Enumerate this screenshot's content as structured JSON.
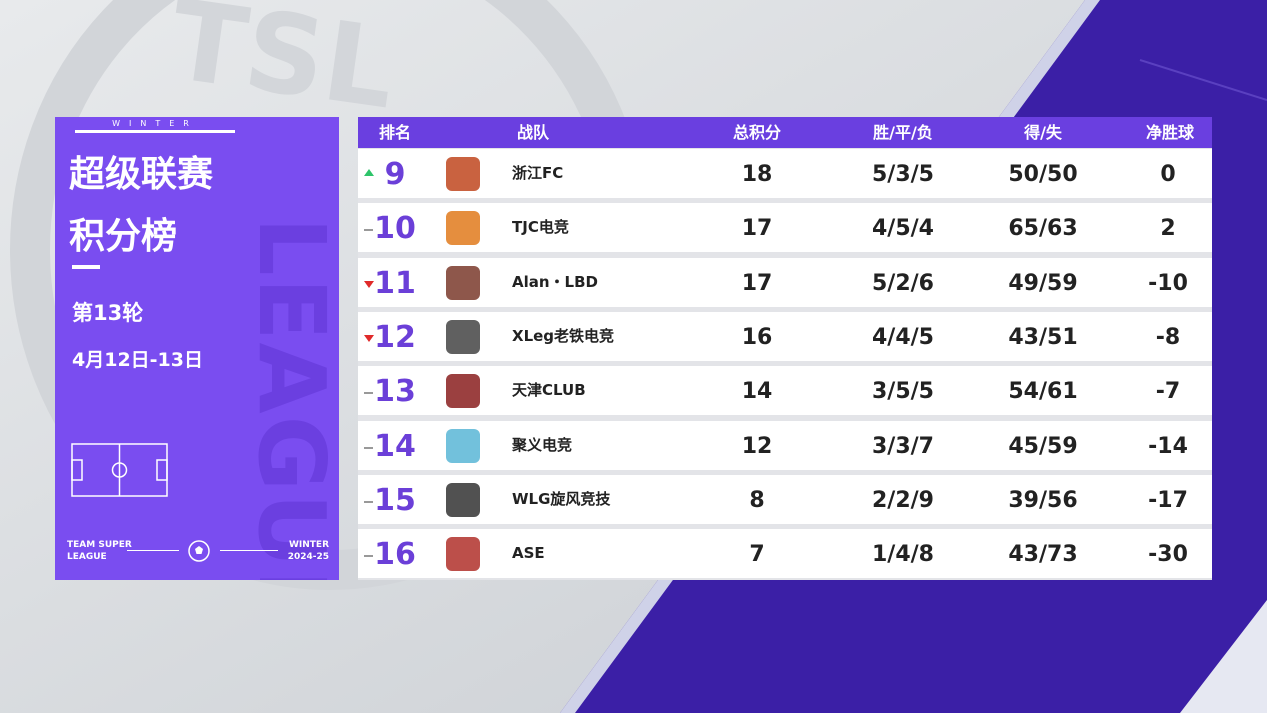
{
  "background_logo": "TSL",
  "panel": {
    "season_tag": "WINTER",
    "title_line1": "超级联赛",
    "title_line2": "积分榜",
    "round": "第13轮",
    "dates": "4月12日-13日",
    "watermark": "LEAGUE",
    "footer_left": [
      "TEAM SUPER",
      "LEAGUE"
    ],
    "footer_right": [
      "WINTER",
      "2024-25"
    ]
  },
  "table": {
    "headers": [
      "排名",
      "战队",
      "总积分",
      "胜/平/负",
      "得/失",
      "净胜球"
    ],
    "rows": [
      {
        "trend": "up",
        "rank": 9,
        "team": "浙江FC",
        "points": 18,
        "record": "5/3/5",
        "goals": "50/50",
        "diff": 0
      },
      {
        "trend": "same",
        "rank": 10,
        "team": "TJC电竞",
        "points": 17,
        "record": "4/5/4",
        "goals": "65/63",
        "diff": 2
      },
      {
        "trend": "down",
        "rank": 11,
        "team": "Alan・LBD",
        "points": 17,
        "record": "5/2/6",
        "goals": "49/59",
        "diff": -10
      },
      {
        "trend": "down",
        "rank": 12,
        "team": "XLeg老铁电竞",
        "points": 16,
        "record": "4/4/5",
        "goals": "43/51",
        "diff": -8
      },
      {
        "trend": "same",
        "rank": 13,
        "team": "天津CLUB",
        "points": 14,
        "record": "3/5/5",
        "goals": "54/61",
        "diff": -7
      },
      {
        "trend": "same",
        "rank": 14,
        "team": "聚义电竞",
        "points": 12,
        "record": "3/3/7",
        "goals": "45/59",
        "diff": -14
      },
      {
        "trend": "same",
        "rank": 15,
        "team": "WLG旋风竞技",
        "points": 8,
        "record": "2/2/9",
        "goals": "39/56",
        "diff": -17
      },
      {
        "trend": "same",
        "rank": 16,
        "team": "ASE",
        "points": 7,
        "record": "1/4/8",
        "goals": "43/73",
        "diff": -30
      }
    ]
  }
}
